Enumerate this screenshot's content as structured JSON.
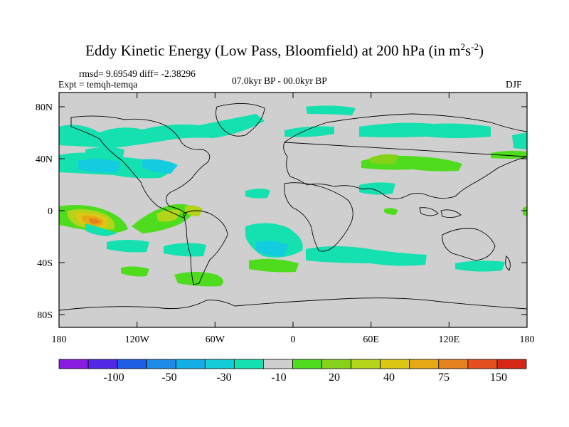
{
  "title": {
    "main": "Eddy Kinetic Energy (Low Pass, Bloomfield) at 200 hPa (in m",
    "sup1": "2",
    "mid": "s",
    "sup2": "-2",
    "end": ")"
  },
  "stats": "rmsd= 9.69549  diff= -2.38296",
  "expt": "Expt = temqh-temqa",
  "period": "07.0kyr BP - 00.0kyr BP",
  "season": "DJF",
  "axes": {
    "y_ticks": [
      "80N",
      "40N",
      "0",
      "40S",
      "80S"
    ],
    "x_ticks": [
      "180",
      "120W",
      "60W",
      "0",
      "60E",
      "120E",
      "180"
    ]
  },
  "colorbar": {
    "colors": [
      "#8a1be0",
      "#5028e6",
      "#1e5ee6",
      "#1e8ce6",
      "#14aee6",
      "#12ccd8",
      "#14e0b0",
      "#cfcfcf",
      "#50dc1e",
      "#86d21a",
      "#b4d41a",
      "#dcc814",
      "#e6a814",
      "#e6821e",
      "#e6501e",
      "#d82614"
    ],
    "labels": [
      "-100",
      "-50",
      "-30",
      "-10",
      "20",
      "40",
      "75",
      "150"
    ]
  },
  "colors": {
    "land_ocean_neutral": "#cfcfcf",
    "coast": "#000000"
  }
}
